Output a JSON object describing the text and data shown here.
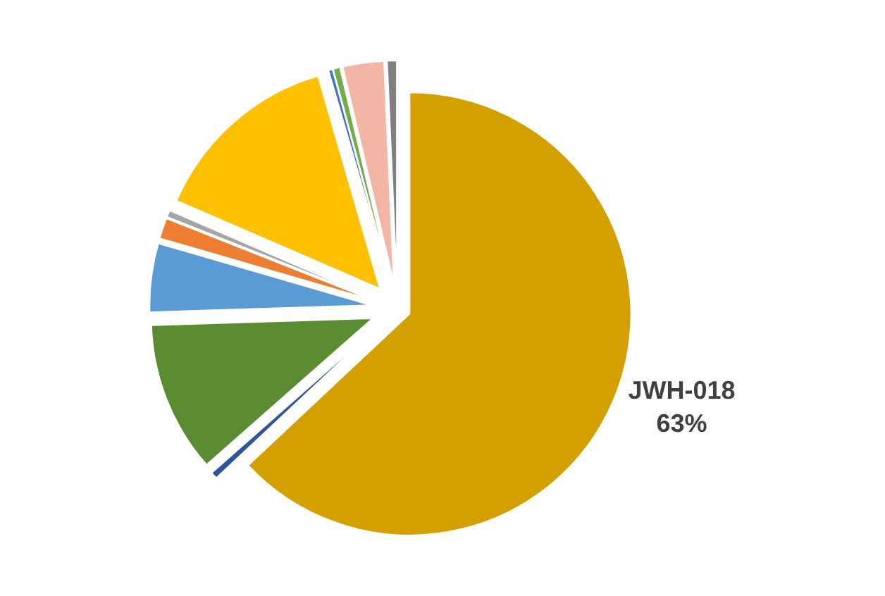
{
  "chart_data": {
    "type": "pie",
    "categories": [
      "JWH-018",
      null,
      null,
      null,
      null,
      null,
      null,
      null,
      null,
      null,
      null
    ],
    "values": [
      63,
      0.5,
      11,
      5,
      1.5,
      0.5,
      14,
      0.3,
      0.5,
      3,
      0.7
    ],
    "colors": [
      "#d4a000",
      "#2e5597",
      "#5b8c32",
      "#5b9bd5",
      "#ed7d31",
      "#a5a5a5",
      "#ffc000",
      "#4472c4",
      "#70ad47",
      "#f4b6a4",
      "#7f7f7f"
    ],
    "value_labels": [
      "63%",
      null,
      null,
      null,
      null,
      null,
      null,
      null,
      null,
      null,
      null
    ],
    "legend": false
  }
}
